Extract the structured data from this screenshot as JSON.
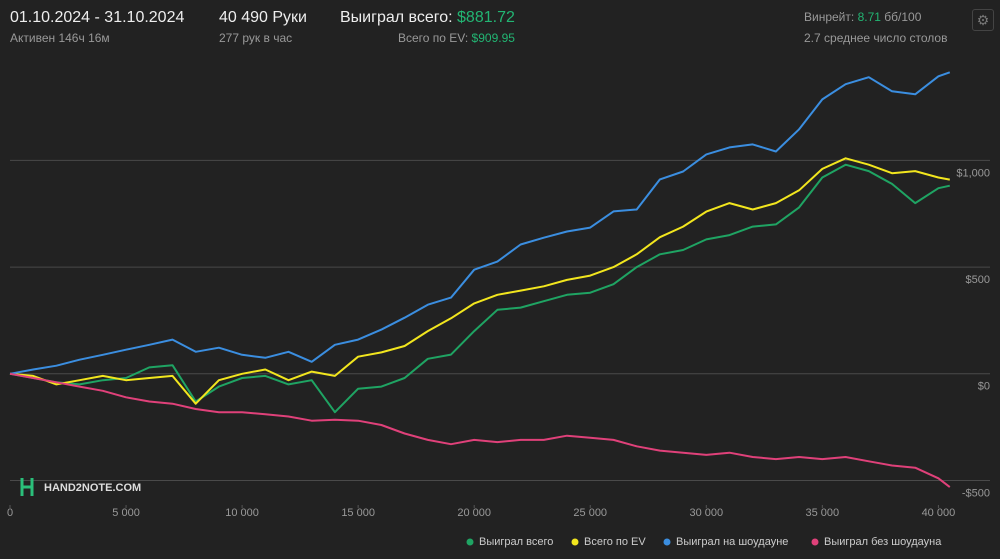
{
  "header": {
    "period": "01.10.2024 - 31.10.2024",
    "active": "Активен 146ч 16м",
    "hands": "40 490 Руки",
    "hands_per_hour": "277 рук в час",
    "won_label": "Выиграл всего:",
    "won_value": "$881.72",
    "ev_label": "Всего по EV:",
    "ev_value": "$909.95",
    "winrate_label": "Винрейт:",
    "winrate_value": "8.71",
    "winrate_unit": "бб/100",
    "tables": "2.7 среднее число столов",
    "logo": "HAND2NOTE.COM"
  },
  "chart_data": {
    "type": "line",
    "x": [
      0,
      1000,
      2000,
      3000,
      4000,
      5000,
      6000,
      7000,
      8000,
      9000,
      10000,
      11000,
      12000,
      13000,
      14000,
      15000,
      16000,
      17000,
      18000,
      19000,
      20000,
      21000,
      22000,
      23000,
      24000,
      25000,
      26000,
      27000,
      28000,
      29000,
      30000,
      31000,
      32000,
      33000,
      34000,
      35000,
      36000,
      37000,
      38000,
      39000,
      40000,
      40490
    ],
    "series": [
      {
        "name": "Выиграл всего",
        "color": "#1fa463",
        "values": [
          0,
          -20,
          -40,
          -50,
          -30,
          -20,
          30,
          40,
          -130,
          -60,
          -20,
          -10,
          -50,
          -30,
          -180,
          -70,
          -60,
          -20,
          70,
          90,
          200,
          300,
          310,
          340,
          370,
          380,
          420,
          500,
          560,
          580,
          630,
          650,
          690,
          700,
          780,
          920,
          980,
          950,
          890,
          800,
          870,
          881.72
        ]
      },
      {
        "name": "Всего по EV",
        "color": "#f2e61e",
        "values": [
          0,
          -10,
          -50,
          -30,
          -10,
          -30,
          -20,
          -10,
          -140,
          -30,
          0,
          20,
          -30,
          10,
          -10,
          80,
          100,
          130,
          200,
          260,
          330,
          370,
          390,
          410,
          440,
          460,
          500,
          560,
          640,
          690,
          760,
          800,
          770,
          800,
          860,
          960,
          1010,
          980,
          940,
          950,
          920,
          909.95
        ]
      },
      {
        "name": "Выиграл на шоудауне",
        "color": "#3b8ee0",
        "values": [
          0,
          20,
          38,
          66,
          89,
          113,
          136,
          160,
          103,
          122,
          89,
          75,
          103,
          56,
          136,
          160,
          207,
          263,
          324,
          357,
          488,
          526,
          606,
          638,
          667,
          685,
          761,
          770,
          911,
          948,
          1028,
          1061,
          1075,
          1042,
          1146,
          1286,
          1357,
          1390,
          1324,
          1310,
          1394,
          1413
        ]
      },
      {
        "name": "Выиграл без шоудауна",
        "color": "#e0417a",
        "values": [
          0,
          -20,
          -40,
          -60,
          -80,
          -110,
          -130,
          -140,
          -165,
          -180,
          -180,
          -190,
          -200,
          -220,
          -215,
          -220,
          -240,
          -280,
          -310,
          -330,
          -310,
          -320,
          -310,
          -310,
          -290,
          -300,
          -310,
          -340,
          -360,
          -370,
          -380,
          -370,
          -390,
          -400,
          -390,
          -400,
          -390,
          -410,
          -430,
          -440,
          -490,
          -531
        ]
      }
    ],
    "xlim": [
      0,
      40500
    ],
    "xticks": [
      0,
      {
        "value": 5000,
        "label": "5 000"
      },
      {
        "value": 10000,
        "label": "10 000"
      },
      {
        "value": 15000,
        "label": "15 000"
      },
      {
        "value": 20000,
        "label": "20 000"
      },
      {
        "value": 25000,
        "label": "25 000"
      },
      {
        "value": 30000,
        "label": "30 000"
      },
      {
        "value": 35000,
        "label": "35 000"
      },
      {
        "value": 40000,
        "label": "40 000"
      }
    ],
    "ylim": [
      -615,
      1480
    ],
    "yticks": [
      {
        "value": -500,
        "label": "-$500"
      },
      {
        "value": 0,
        "label": "$0"
      },
      {
        "value": 500,
        "label": "$500"
      },
      {
        "value": 1000,
        "label": "$1,000"
      }
    ],
    "grid": true
  }
}
